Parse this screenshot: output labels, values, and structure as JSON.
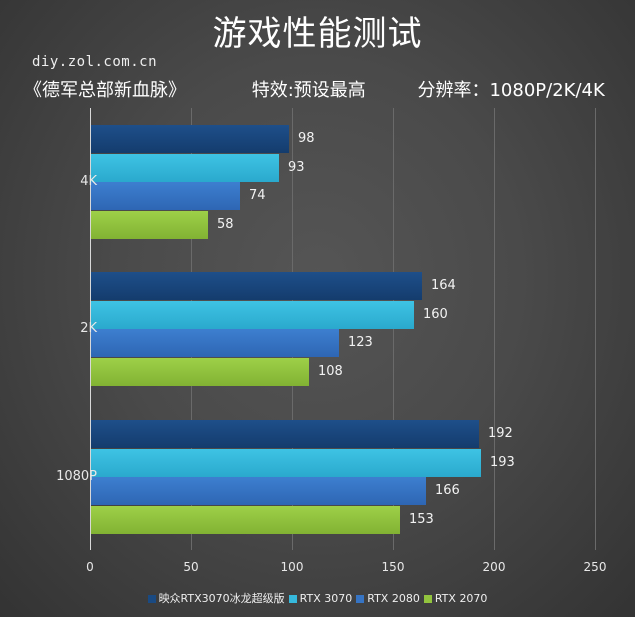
{
  "header": {
    "title": "游戏性能测试",
    "site": "diy.zol.com.cn",
    "game": "《德军总部新血脉》",
    "effect": "特效:预设最高",
    "resolution": "分辨率：1080P/2K/4K"
  },
  "colors": {
    "series": [
      "#1a4a82",
      "#36b9dc",
      "#3674c4",
      "#92c43e"
    ],
    "background": "#444444"
  },
  "chart_data": {
    "type": "bar",
    "orientation": "horizontal",
    "title": "游戏性能测试",
    "subtitle": "《德军总部新血脉》 特效:预设最高 分辨率：1080P/2K/4K",
    "categories": [
      "4K",
      "2K",
      "1080P"
    ],
    "series": [
      {
        "name": "映众RTX3070冰龙超级版",
        "values": [
          98,
          164,
          192
        ]
      },
      {
        "name": "RTX 3070",
        "values": [
          93,
          160,
          193
        ]
      },
      {
        "name": "RTX 2080",
        "values": [
          74,
          123,
          166
        ]
      },
      {
        "name": "RTX 2070",
        "values": [
          58,
          108,
          153
        ]
      }
    ],
    "xlabel": "",
    "ylabel": "",
    "xlim": [
      0,
      250
    ],
    "xticks": [
      0,
      50,
      100,
      150,
      200,
      250
    ],
    "grid": true,
    "legend_position": "bottom"
  },
  "axis": {
    "ticks": [
      "0",
      "50",
      "100",
      "150",
      "200",
      "250"
    ]
  },
  "legend": [
    {
      "label": "映众RTX3070冰龙超级版"
    },
    {
      "label": "RTX 3070"
    },
    {
      "label": "RTX 2080"
    },
    {
      "label": "RTX 2070"
    }
  ]
}
